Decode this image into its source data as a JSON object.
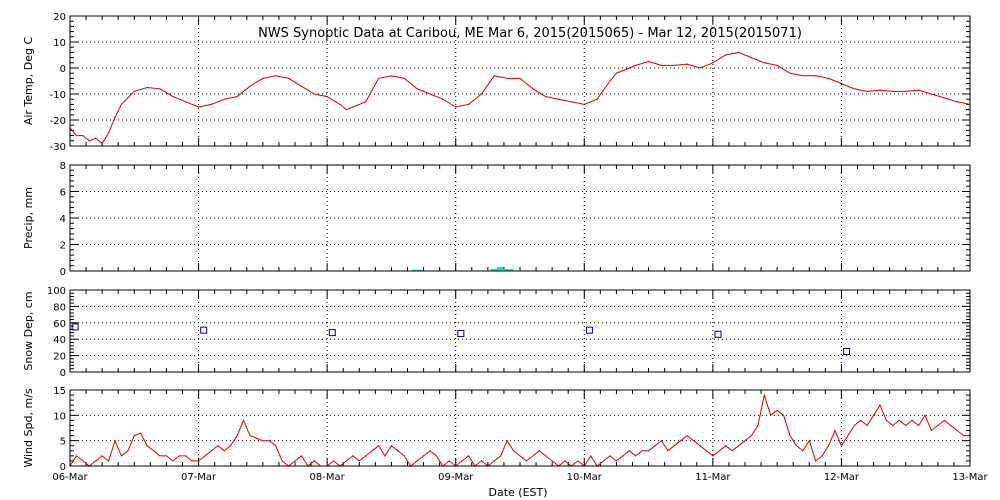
{
  "title": "NWS Synoptic Data at Caribou, ME   Mar  6, 2015(2015065) - Mar 12, 2015(2015071)",
  "xlabel": "Date (EST)",
  "colors": {
    "temp": "#dd0000",
    "precip": "#00e5e5",
    "snow": "#00008b",
    "wind": "#dd0000"
  },
  "chart_data": [
    {
      "type": "line",
      "ylabel": "Air Temp, Deg C",
      "xlim": [
        0,
        7
      ],
      "ylim": [
        -30,
        20
      ],
      "yticks": [
        -30,
        -20,
        -10,
        0,
        10,
        20
      ],
      "xticks": [
        0,
        1,
        2,
        3,
        4,
        5,
        6,
        7
      ],
      "xticklabels": [
        "06-Mar",
        "07-Mar",
        "08-Mar",
        "09-Mar",
        "10-Mar",
        "11-Mar",
        "12-Mar",
        "13-Mar"
      ],
      "grid": true,
      "series": [
        {
          "x": [
            0,
            0.05,
            0.1,
            0.15,
            0.2,
            0.25,
            0.3,
            0.35,
            0.4,
            0.5,
            0.6,
            0.7,
            0.8,
            0.9,
            1.0,
            1.1,
            1.2,
            1.3,
            1.4,
            1.5,
            1.6,
            1.7,
            1.8,
            1.9,
            2.0,
            2.1,
            2.15,
            2.2,
            2.3,
            2.4,
            2.5,
            2.6,
            2.7,
            2.75,
            2.8,
            2.9,
            3.0,
            3.1,
            3.2,
            3.3,
            3.4,
            3.5,
            3.6,
            3.7,
            3.8,
            3.9,
            4.0,
            4.1,
            4.2,
            4.25,
            4.3,
            4.4,
            4.5,
            4.6,
            4.7,
            4.8,
            4.9,
            5.0,
            5.1,
            5.2,
            5.3,
            5.4,
            5.5,
            5.6,
            5.7,
            5.8,
            5.9,
            6.0,
            6.1,
            6.2,
            6.3,
            6.4,
            6.5,
            6.6,
            6.7,
            6.8,
            6.9,
            7.0
          ],
          "y": [
            -23,
            -26,
            -26,
            -28,
            -27,
            -29,
            -25,
            -19,
            -14,
            -9,
            -7.5,
            -8,
            -11,
            -13,
            -15,
            -14,
            -12,
            -11,
            -7,
            -4,
            -3,
            -4,
            -7,
            -10,
            -11,
            -14,
            -16,
            -15,
            -13,
            -4,
            -3,
            -4,
            -8,
            -9,
            -10,
            -12,
            -15,
            -14,
            -10,
            -3,
            -4,
            -4,
            -8,
            -11,
            -12,
            -13,
            -14,
            -12,
            -5,
            -2,
            -1,
            1,
            2.5,
            1,
            1,
            1.5,
            0,
            2,
            5,
            6,
            4,
            2,
            1,
            -2,
            -3,
            -3,
            -4,
            -6,
            -8,
            -9,
            -8.5,
            -9,
            -9,
            -8.5,
            -10,
            -11.5,
            -13,
            -14
          ]
        }
      ]
    },
    {
      "type": "bar",
      "ylabel": "Precip, mm",
      "xlim": [
        0,
        7
      ],
      "ylim": [
        0,
        8
      ],
      "yticks": [
        0,
        2,
        4,
        6,
        8
      ],
      "grid": true,
      "bars": [
        {
          "x0": 2.66,
          "x1": 2.74,
          "value": 0.1
        },
        {
          "x0": 3.27,
          "x1": 3.32,
          "value": 0.15
        },
        {
          "x0": 3.32,
          "x1": 3.37,
          "value": 0.3
        },
        {
          "x0": 3.37,
          "x1": 3.45,
          "value": 0.15
        }
      ]
    },
    {
      "type": "scatter",
      "ylabel": "Snow Dep, cm",
      "xlim": [
        0,
        7
      ],
      "ylim": [
        0,
        100
      ],
      "yticks": [
        0,
        20,
        40,
        60,
        80,
        100
      ],
      "grid": true,
      "series": [
        {
          "x": [
            0.04,
            1.04,
            2.04,
            3.04,
            4.04,
            5.04,
            6.04
          ],
          "y": [
            55,
            51,
            48,
            47,
            51,
            46,
            25
          ]
        }
      ]
    },
    {
      "type": "line",
      "ylabel": "Wind Spd, m/s",
      "xlim": [
        0,
        7
      ],
      "ylim": [
        0,
        15
      ],
      "yticks": [
        0,
        5,
        10,
        15
      ],
      "grid": true,
      "series": [
        {
          "x": [
            0,
            0.05,
            0.1,
            0.15,
            0.2,
            0.25,
            0.3,
            0.35,
            0.4,
            0.45,
            0.5,
            0.55,
            0.6,
            0.65,
            0.7,
            0.75,
            0.8,
            0.85,
            0.9,
            0.95,
            1.0,
            1.05,
            1.1,
            1.15,
            1.2,
            1.25,
            1.3,
            1.35,
            1.4,
            1.45,
            1.5,
            1.55,
            1.6,
            1.65,
            1.7,
            1.75,
            1.8,
            1.85,
            1.9,
            1.95,
            2.0,
            2.05,
            2.1,
            2.15,
            2.2,
            2.25,
            2.3,
            2.35,
            2.4,
            2.45,
            2.5,
            2.55,
            2.6,
            2.65,
            2.7,
            2.75,
            2.8,
            2.85,
            2.9,
            2.95,
            3.0,
            3.05,
            3.1,
            3.15,
            3.2,
            3.25,
            3.3,
            3.35,
            3.4,
            3.45,
            3.5,
            3.55,
            3.6,
            3.65,
            3.7,
            3.75,
            3.8,
            3.85,
            3.9,
            3.95,
            4.0,
            4.05,
            4.1,
            4.15,
            4.2,
            4.25,
            4.3,
            4.35,
            4.4,
            4.45,
            4.5,
            4.55,
            4.6,
            4.65,
            4.7,
            4.75,
            4.8,
            4.85,
            4.9,
            4.95,
            5.0,
            5.05,
            5.1,
            5.15,
            5.2,
            5.25,
            5.3,
            5.35,
            5.4,
            5.45,
            5.5,
            5.55,
            5.6,
            5.65,
            5.7,
            5.75,
            5.8,
            5.85,
            5.9,
            5.95,
            6.0,
            6.05,
            6.1,
            6.15,
            6.2,
            6.25,
            6.3,
            6.35,
            6.4,
            6.45,
            6.5,
            6.55,
            6.6,
            6.65,
            6.7,
            6.75,
            6.8,
            6.85,
            6.9,
            6.95,
            7.0
          ],
          "y": [
            0,
            2,
            1,
            0,
            1,
            2,
            1,
            5,
            2,
            3,
            6,
            6.5,
            4,
            3,
            2,
            2,
            1,
            2,
            2,
            1,
            1,
            2,
            3,
            4,
            3,
            4,
            6,
            9,
            6,
            5.5,
            5,
            5,
            4,
            1,
            0,
            1,
            2,
            0,
            1,
            0,
            0,
            1,
            0,
            1,
            2,
            1,
            2,
            3,
            4,
            2,
            4,
            3,
            2,
            0,
            1,
            2,
            3,
            2,
            0,
            1,
            0,
            1,
            2,
            0,
            1,
            0,
            1,
            2,
            5,
            3,
            2,
            1,
            2,
            3,
            2,
            1,
            0,
            1,
            0,
            1,
            0,
            2,
            0,
            1,
            2,
            1,
            2,
            3,
            2,
            3,
            3,
            4,
            5,
            3,
            4,
            5,
            6,
            5,
            4,
            3,
            2,
            3,
            4,
            3,
            4,
            5,
            6,
            8,
            14,
            10,
            11,
            10,
            6,
            4,
            3,
            5,
            1,
            2,
            4,
            7,
            4,
            6,
            8,
            9,
            8,
            10,
            12,
            9,
            8,
            9,
            8,
            9,
            8,
            10,
            7,
            8,
            9,
            8,
            7,
            6,
            6
          ]
        }
      ]
    }
  ]
}
